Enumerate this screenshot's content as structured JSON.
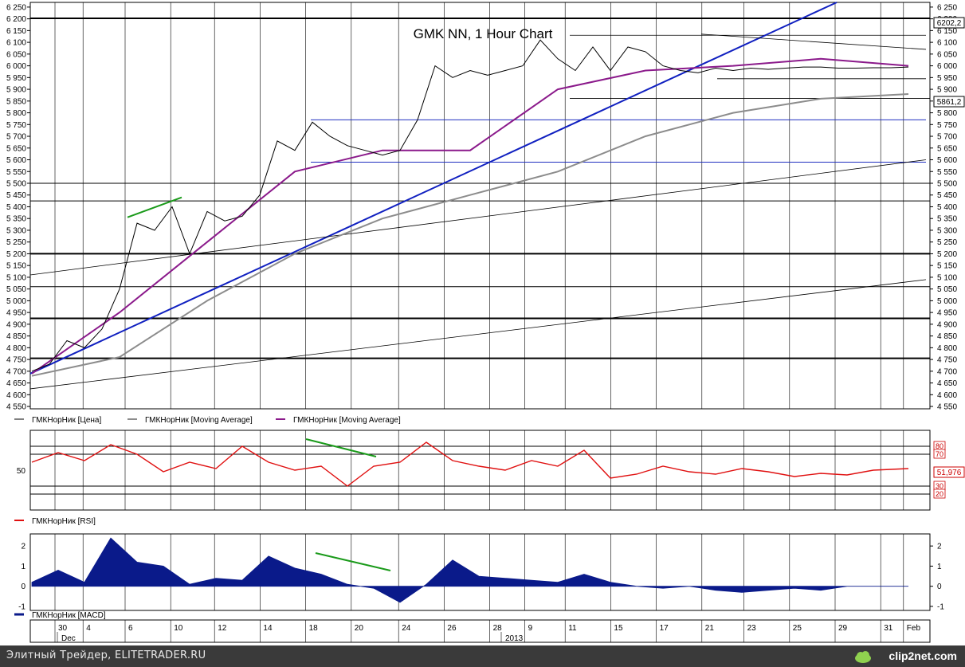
{
  "chart_data": [
    {
      "type": "line",
      "title": "GMK NN, 1 Hour Chart",
      "ylim": [
        4540,
        6270
      ],
      "y_ticks": [
        "4 550",
        "4 600",
        "4 650",
        "4 700",
        "4 750",
        "4 800",
        "4 850",
        "4 900",
        "4 950",
        "5 000",
        "5 050",
        "5 100",
        "5 150",
        "5 200",
        "5 250",
        "5 300",
        "5 350",
        "5 400",
        "5 450",
        "5 500",
        "5 550",
        "5 600",
        "5 650",
        "5 700",
        "5 750",
        "5 800",
        "5 850",
        "5 900",
        "5 950",
        "6 000",
        "6 050",
        "6 100",
        "6 150",
        "6 200",
        "6 250"
      ],
      "price_labels": [
        "6202,2",
        "5861,2"
      ],
      "legend": [
        "ГМКНорНик [Цена]",
        "ГМКНорНик [Moving Average]",
        "ГМКНорНик [Moving Average]"
      ],
      "series": [
        {
          "name": "ГМКНорНик [Цена]",
          "x": [
            0,
            2,
            4,
            6,
            8,
            10,
            12,
            14,
            16,
            18,
            20,
            22,
            24,
            26,
            28,
            30,
            32,
            34,
            36,
            38,
            40,
            42,
            44,
            46,
            48,
            50,
            52,
            54,
            56,
            58,
            60,
            62,
            64,
            66,
            68,
            70,
            72,
            74,
            76,
            78,
            80,
            82,
            84,
            86,
            88,
            90,
            92,
            94,
            96,
            98,
            100
          ],
          "values": [
            4700,
            4730,
            4830,
            4800,
            4880,
            5050,
            5330,
            5300,
            5400,
            5200,
            5380,
            5340,
            5360,
            5450,
            5680,
            5640,
            5760,
            5700,
            5660,
            5640,
            5620,
            5640,
            5770,
            6000,
            5950,
            5980,
            5960,
            5980,
            6000,
            6110,
            6030,
            5980,
            6080,
            5980,
            6080,
            6060,
            6000,
            5980,
            5970,
            5990,
            5980,
            5990,
            5985,
            5990,
            5995,
            5995,
            5990,
            5990,
            5992,
            5992,
            5995
          ]
        },
        {
          "name": "ГМКНорНик [Moving Average]",
          "x": [
            0,
            10,
            20,
            30,
            40,
            50,
            60,
            70,
            80,
            90,
            100
          ],
          "values": [
            4680,
            4760,
            5000,
            5200,
            5350,
            5450,
            5550,
            5700,
            5800,
            5860,
            5880
          ]
        },
        {
          "name": "ГМКНорНик [Moving Average]",
          "x": [
            0,
            10,
            20,
            30,
            40,
            50,
            60,
            70,
            80,
            90,
            100
          ],
          "values": [
            4690,
            4950,
            5250,
            5550,
            5640,
            5640,
            5900,
            5980,
            6000,
            6030,
            6000
          ]
        }
      ]
    },
    {
      "type": "line",
      "ylim": [
        0,
        100
      ],
      "y_ticks": [
        "80",
        "70",
        "50",
        "30",
        "20"
      ],
      "value_label": "51,976",
      "legend": [
        "ГМКНорНик [RSI]"
      ],
      "series": [
        {
          "name": "ГМКНорНик [RSI]",
          "x": [
            0,
            3,
            6,
            9,
            12,
            15,
            18,
            21,
            24,
            27,
            30,
            33,
            36,
            39,
            42,
            45,
            48,
            51,
            54,
            57,
            60,
            63,
            66,
            69,
            72,
            75,
            78,
            81,
            84,
            87,
            90,
            93,
            96,
            100
          ],
          "values": [
            60,
            72,
            62,
            82,
            70,
            48,
            60,
            52,
            80,
            60,
            50,
            55,
            30,
            55,
            60,
            85,
            62,
            55,
            50,
            62,
            55,
            75,
            40,
            45,
            55,
            48,
            45,
            52,
            48,
            42,
            46,
            44,
            50,
            52
          ]
        }
      ]
    },
    {
      "type": "area",
      "ylim": [
        -1.2,
        2.6
      ],
      "y_ticks": [
        "2",
        "1",
        "0",
        "-1"
      ],
      "legend": [
        "ГМКНорНик [MACD]"
      ],
      "series": [
        {
          "name": "ГМКНорНик [MACD]",
          "x": [
            0,
            3,
            6,
            9,
            12,
            15,
            18,
            21,
            24,
            27,
            30,
            33,
            36,
            39,
            42,
            45,
            48,
            51,
            54,
            57,
            60,
            63,
            66,
            69,
            72,
            75,
            78,
            81,
            84,
            87,
            90,
            93,
            96,
            100
          ],
          "values": [
            0.2,
            0.8,
            0.2,
            2.4,
            1.2,
            1.0,
            0.1,
            0.4,
            0.3,
            1.5,
            0.9,
            0.6,
            0.1,
            -0.1,
            -0.8,
            0.1,
            1.3,
            0.5,
            0.4,
            0.3,
            0.2,
            0.6,
            0.2,
            0.0,
            -0.1,
            0.0,
            -0.2,
            -0.3,
            -0.2,
            -0.1,
            -0.2,
            0.0,
            0.0,
            0.0
          ]
        }
      ]
    }
  ],
  "x_axis": {
    "day_labels": [
      "30",
      "4",
      "6",
      "10",
      "12",
      "14",
      "18",
      "20",
      "24",
      "26",
      "28",
      "9",
      "11",
      "15",
      "17",
      "21",
      "23",
      "25",
      "29",
      "31",
      "Feb"
    ],
    "month_labels": [
      "Dec",
      "2013",
      "Feb"
    ]
  },
  "footer": {
    "left_text": "Элитный Трейдер, ELITETRADER.RU",
    "brand": "clip2net.com"
  }
}
